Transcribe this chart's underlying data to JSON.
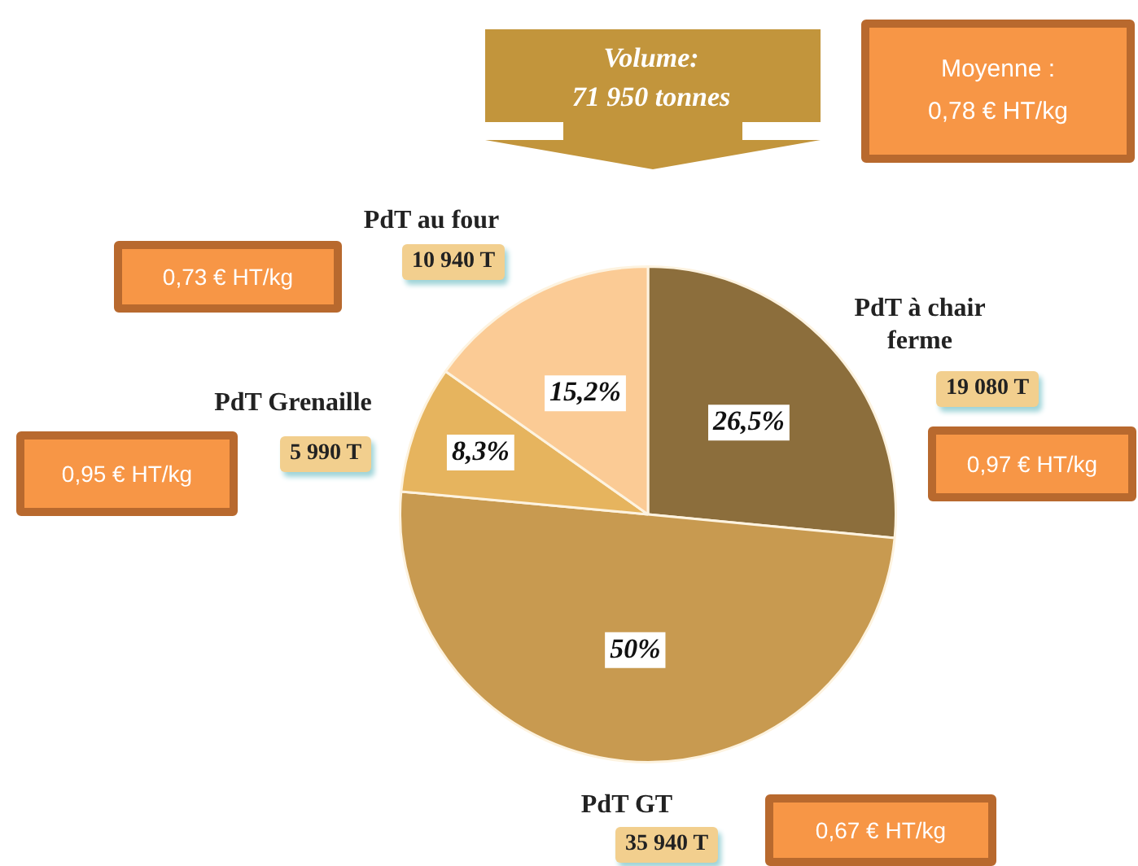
{
  "chart_data": {
    "type": "pie",
    "title": "Volume: 71 950 tonnes",
    "categories": [
      "PdT à chair ferme",
      "PdT GT",
      "PdT Grenaille",
      "PdT au four"
    ],
    "values": [
      19080,
      35940,
      5990,
      10940
    ],
    "colors": [
      "#8c6e3c",
      "#c89a50",
      "#e6b45e",
      "#fbcb95"
    ],
    "value_labels": [
      "19 080 T",
      "35 940 T",
      "5 990 T",
      "10 940 T"
    ],
    "annotations": [
      {
        "text": "26,5%",
        "x": "PdT à chair ferme"
      },
      {
        "text": "50%",
        "x": "PdT GT"
      },
      {
        "text": "8,3%",
        "x": "PdT Grenaille"
      },
      {
        "text": "15,2%",
        "x": "PdT au four"
      },
      {
        "text": "0,97 € HT/kg",
        "x": "PdT à chair ferme"
      },
      {
        "text": "0,67 € HT/kg",
        "x": "PdT GT"
      },
      {
        "text": "0,95 € HT/kg",
        "x": "PdT Grenaille"
      },
      {
        "text": "0,73 € HT/kg",
        "x": "PdT au four"
      },
      "Moyenne : 0,78 € HT/kg"
    ]
  }
}
